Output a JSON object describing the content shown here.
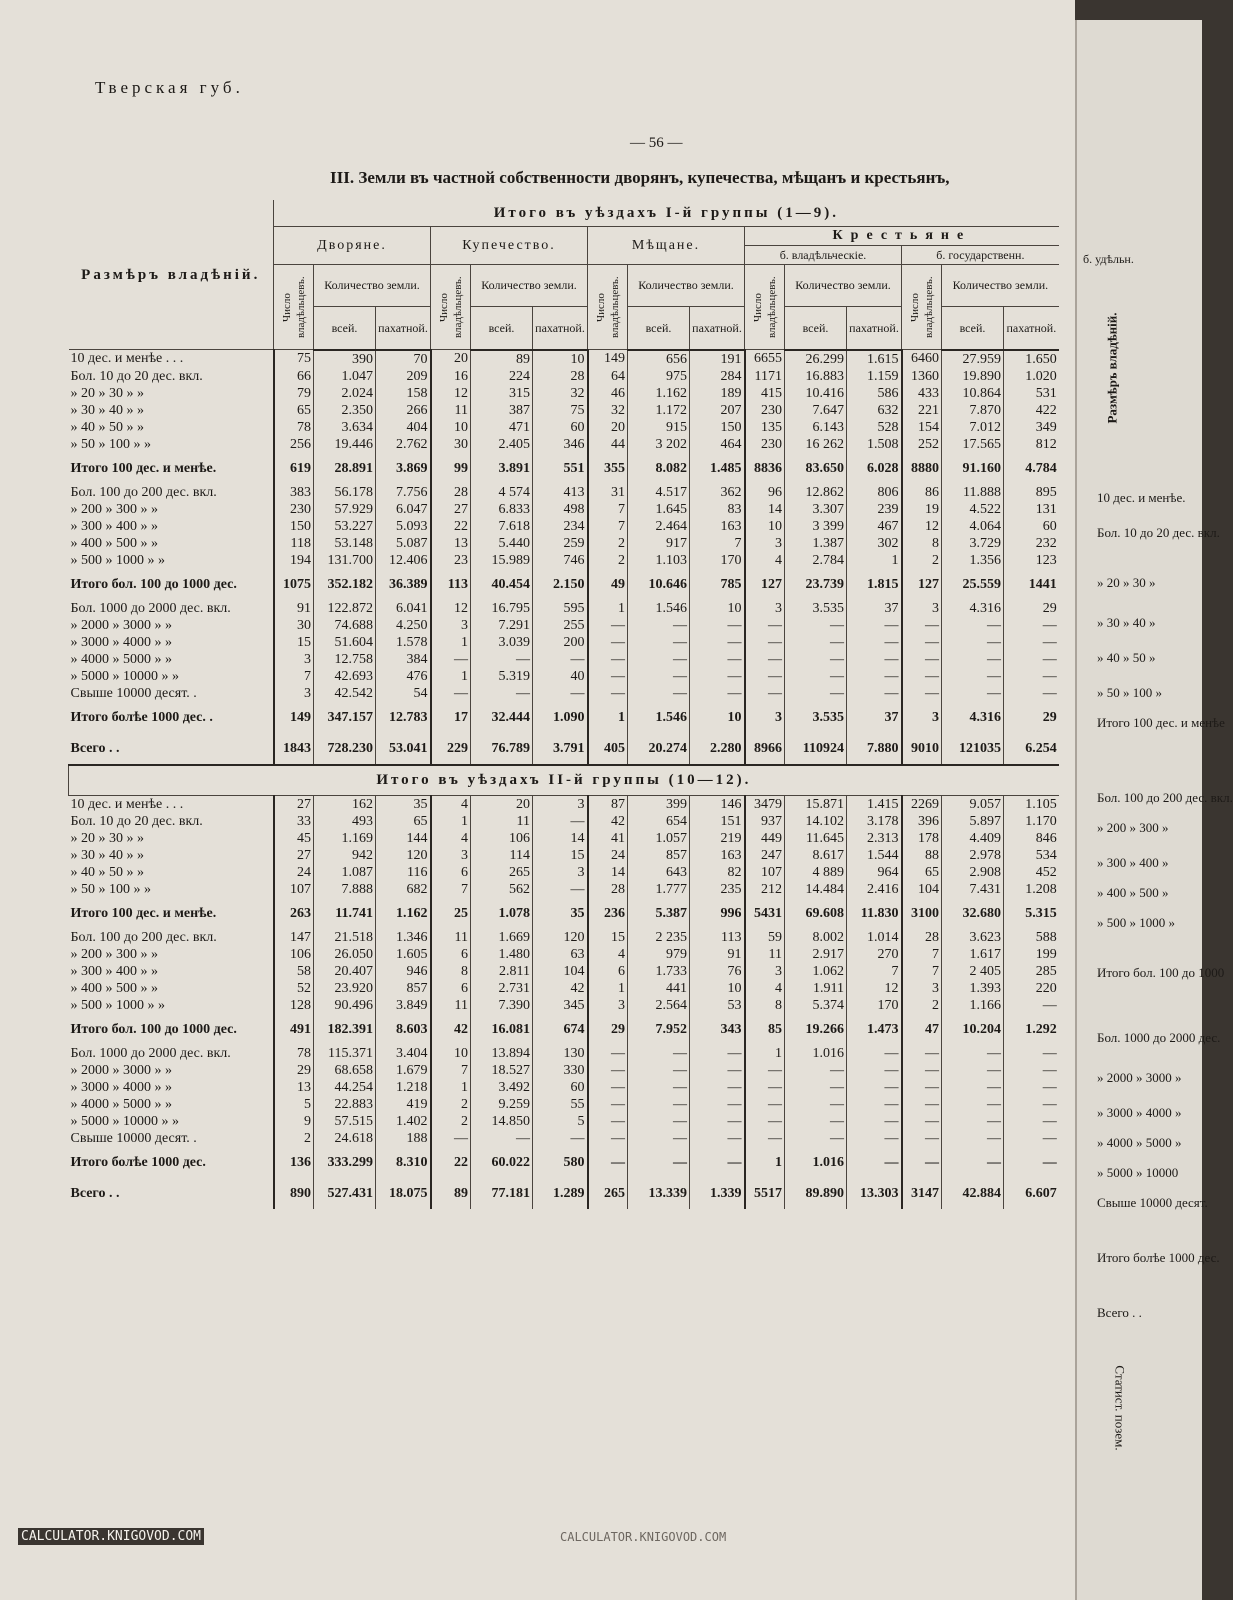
{
  "running_head": "Тверская губ.",
  "page_number": "— 56 —",
  "table_title": "III. Земли въ частной собственности дворянъ, купечества, мѣщанъ и крестьянъ,",
  "headers": {
    "size_col": "Размѣръ владѣній.",
    "group1": "Итого въ уѣздахъ I-й группы (1—9).",
    "group2": "Итого въ уѣздахъ II-й группы (10—12).",
    "nobles": "Дворяне.",
    "merchants": "Купечество.",
    "townsfolk": "Мѣщане.",
    "peasants": "Крестьяне",
    "former_private": "б. владѣльческіе.",
    "former_state": "б. государственн.",
    "former_appanage": "б. удѣльн.",
    "owners_count": "Число владѣльцевъ.",
    "land_amount": "Количество земли.",
    "total": "всей.",
    "arable": "пахатной."
  },
  "group1_rows": [
    {
      "label": "10 дес. и менѣе . . .",
      "v": [
        "75",
        "390",
        "70",
        "20",
        "89",
        "10",
        "149",
        "656",
        "191",
        "6655",
        "26.299",
        "1.615",
        "6460",
        "27.959",
        "1.650"
      ]
    },
    {
      "label": "Бол. 10 до 20 дес. вкл.",
      "v": [
        "66",
        "1.047",
        "209",
        "16",
        "224",
        "28",
        "64",
        "975",
        "284",
        "1171",
        "16.883",
        "1.159",
        "1360",
        "19.890",
        "1.020"
      ]
    },
    {
      "label": "» 20 » 30 » »",
      "v": [
        "79",
        "2.024",
        "158",
        "12",
        "315",
        "32",
        "46",
        "1.162",
        "189",
        "415",
        "10.416",
        "586",
        "433",
        "10.864",
        "531"
      ]
    },
    {
      "label": "» 30 » 40 » »",
      "v": [
        "65",
        "2.350",
        "266",
        "11",
        "387",
        "75",
        "32",
        "1.172",
        "207",
        "230",
        "7.647",
        "632",
        "221",
        "7.870",
        "422"
      ]
    },
    {
      "label": "» 40 » 50 » »",
      "v": [
        "78",
        "3.634",
        "404",
        "10",
        "471",
        "60",
        "20",
        "915",
        "150",
        "135",
        "6.143",
        "528",
        "154",
        "7.012",
        "349"
      ]
    },
    {
      "label": "» 50 » 100 » »",
      "v": [
        "256",
        "19.446",
        "2.762",
        "30",
        "2.405",
        "346",
        "44",
        "3 202",
        "464",
        "230",
        "16 262",
        "1.508",
        "252",
        "17.565",
        "812"
      ]
    },
    {
      "label": "Итого 100 дес. и менѣе.",
      "total": true,
      "v": [
        "619",
        "28.891",
        "3.869",
        "99",
        "3.891",
        "551",
        "355",
        "8.082",
        "1.485",
        "8836",
        "83.650",
        "6.028",
        "8880",
        "91.160",
        "4.784"
      ]
    },
    {
      "label": "Бол. 100 до 200 дес. вкл.",
      "v": [
        "383",
        "56.178",
        "7.756",
        "28",
        "4 574",
        "413",
        "31",
        "4.517",
        "362",
        "96",
        "12.862",
        "806",
        "86",
        "11.888",
        "895"
      ]
    },
    {
      "label": "» 200 » 300 » »",
      "v": [
        "230",
        "57.929",
        "6.047",
        "27",
        "6.833",
        "498",
        "7",
        "1.645",
        "83",
        "14",
        "3.307",
        "239",
        "19",
        "4.522",
        "131"
      ]
    },
    {
      "label": "» 300 » 400 » »",
      "v": [
        "150",
        "53.227",
        "5.093",
        "22",
        "7.618",
        "234",
        "7",
        "2.464",
        "163",
        "10",
        "3 399",
        "467",
        "12",
        "4.064",
        "60"
      ]
    },
    {
      "label": "» 400 » 500 » »",
      "v": [
        "118",
        "53.148",
        "5.087",
        "13",
        "5.440",
        "259",
        "2",
        "917",
        "7",
        "3",
        "1.387",
        "302",
        "8",
        "3.729",
        "232"
      ]
    },
    {
      "label": "» 500 » 1000 » »",
      "v": [
        "194",
        "131.700",
        "12.406",
        "23",
        "15.989",
        "746",
        "2",
        "1.103",
        "170",
        "4",
        "2.784",
        "1",
        "2",
        "1.356",
        "123"
      ]
    },
    {
      "label": "Итого бол. 100 до 1000 дес.",
      "total": true,
      "v": [
        "1075",
        "352.182",
        "36.389",
        "113",
        "40.454",
        "2.150",
        "49",
        "10.646",
        "785",
        "127",
        "23.739",
        "1.815",
        "127",
        "25.559",
        "1441"
      ]
    },
    {
      "label": "Бол. 1000 до 2000 дес. вкл.",
      "v": [
        "91",
        "122.872",
        "6.041",
        "12",
        "16.795",
        "595",
        "1",
        "1.546",
        "10",
        "3",
        "3.535",
        "37",
        "3",
        "4.316",
        "29"
      ]
    },
    {
      "label": "» 2000 » 3000 » »",
      "v": [
        "30",
        "74.688",
        "4.250",
        "3",
        "7.291",
        "255",
        "—",
        "—",
        "—",
        "—",
        "—",
        "—",
        "—",
        "—",
        "—"
      ]
    },
    {
      "label": "» 3000 » 4000 » »",
      "v": [
        "15",
        "51.604",
        "1.578",
        "1",
        "3.039",
        "200",
        "—",
        "—",
        "—",
        "—",
        "—",
        "—",
        "—",
        "—",
        "—"
      ]
    },
    {
      "label": "» 4000 » 5000 » »",
      "v": [
        "3",
        "12.758",
        "384",
        "—",
        "—",
        "—",
        "—",
        "—",
        "—",
        "—",
        "—",
        "—",
        "—",
        "—",
        "—"
      ]
    },
    {
      "label": "» 5000 » 10000 » »",
      "v": [
        "7",
        "42.693",
        "476",
        "1",
        "5.319",
        "40",
        "—",
        "—",
        "—",
        "—",
        "—",
        "—",
        "—",
        "—",
        "—"
      ]
    },
    {
      "label": "Свыше 10000 десят. .",
      "v": [
        "3",
        "42.542",
        "54",
        "—",
        "—",
        "—",
        "—",
        "—",
        "—",
        "—",
        "—",
        "—",
        "—",
        "—",
        "—"
      ]
    },
    {
      "label": "Итого болѣе 1000 дес. .",
      "total": true,
      "v": [
        "149",
        "347.157",
        "12.783",
        "17",
        "32.444",
        "1.090",
        "1",
        "1.546",
        "10",
        "3",
        "3.535",
        "37",
        "3",
        "4.316",
        "29"
      ]
    },
    {
      "label": "Всего . .",
      "total": true,
      "v": [
        "1843",
        "728.230",
        "53.041",
        "229",
        "76.789",
        "3.791",
        "405",
        "20.274",
        "2.280",
        "8966",
        "110924",
        "7.880",
        "9010",
        "121035",
        "6.254"
      ]
    }
  ],
  "group2_rows": [
    {
      "label": "10 дес. и менѣе . . .",
      "v": [
        "27",
        "162",
        "35",
        "4",
        "20",
        "3",
        "87",
        "399",
        "146",
        "3479",
        "15.871",
        "1.415",
        "2269",
        "9.057",
        "1.105"
      ]
    },
    {
      "label": "Бол. 10 до 20 дес. вкл.",
      "v": [
        "33",
        "493",
        "65",
        "1",
        "11",
        "—",
        "42",
        "654",
        "151",
        "937",
        "14.102",
        "3.178",
        "396",
        "5.897",
        "1.170"
      ]
    },
    {
      "label": "» 20 » 30 » »",
      "v": [
        "45",
        "1.169",
        "144",
        "4",
        "106",
        "14",
        "41",
        "1.057",
        "219",
        "449",
        "11.645",
        "2.313",
        "178",
        "4.409",
        "846"
      ]
    },
    {
      "label": "» 30 » 40 » »",
      "v": [
        "27",
        "942",
        "120",
        "3",
        "114",
        "15",
        "24",
        "857",
        "163",
        "247",
        "8.617",
        "1.544",
        "88",
        "2.978",
        "534"
      ]
    },
    {
      "label": "» 40 » 50 » »",
      "v": [
        "24",
        "1.087",
        "116",
        "6",
        "265",
        "3",
        "14",
        "643",
        "82",
        "107",
        "4 889",
        "964",
        "65",
        "2.908",
        "452"
      ]
    },
    {
      "label": "» 50 » 100 » »",
      "v": [
        "107",
        "7.888",
        "682",
        "7",
        "562",
        "—",
        "28",
        "1.777",
        "235",
        "212",
        "14.484",
        "2.416",
        "104",
        "7.431",
        "1.208"
      ]
    },
    {
      "label": "Итого 100 дес. и менѣе.",
      "total": true,
      "v": [
        "263",
        "11.741",
        "1.162",
        "25",
        "1.078",
        "35",
        "236",
        "5.387",
        "996",
        "5431",
        "69.608",
        "11.830",
        "3100",
        "32.680",
        "5.315"
      ]
    },
    {
      "label": "Бол. 100 до 200 дес. вкл.",
      "v": [
        "147",
        "21.518",
        "1.346",
        "11",
        "1.669",
        "120",
        "15",
        "2 235",
        "113",
        "59",
        "8.002",
        "1.014",
        "28",
        "3.623",
        "588"
      ]
    },
    {
      "label": "» 200 » 300 » »",
      "v": [
        "106",
        "26.050",
        "1.605",
        "6",
        "1.480",
        "63",
        "4",
        "979",
        "91",
        "11",
        "2.917",
        "270",
        "7",
        "1.617",
        "199"
      ]
    },
    {
      "label": "» 300 » 400 » »",
      "v": [
        "58",
        "20.407",
        "946",
        "8",
        "2.811",
        "104",
        "6",
        "1.733",
        "76",
        "3",
        "1.062",
        "7",
        "7",
        "2 405",
        "285"
      ]
    },
    {
      "label": "» 400 » 500 » »",
      "v": [
        "52",
        "23.920",
        "857",
        "6",
        "2.731",
        "42",
        "1",
        "441",
        "10",
        "4",
        "1.911",
        "12",
        "3",
        "1.393",
        "220"
      ]
    },
    {
      "label": "» 500 » 1000 » »",
      "v": [
        "128",
        "90.496",
        "3.849",
        "11",
        "7.390",
        "345",
        "3",
        "2.564",
        "53",
        "8",
        "5.374",
        "170",
        "2",
        "1.166",
        "—"
      ]
    },
    {
      "label": "Итого бол. 100 до 1000 дес.",
      "total": true,
      "v": [
        "491",
        "182.391",
        "8.603",
        "42",
        "16.081",
        "674",
        "29",
        "7.952",
        "343",
        "85",
        "19.266",
        "1.473",
        "47",
        "10.204",
        "1.292"
      ]
    },
    {
      "label": "Бол. 1000 до 2000 дес. вкл.",
      "v": [
        "78",
        "115.371",
        "3.404",
        "10",
        "13.894",
        "130",
        "—",
        "—",
        "—",
        "1",
        "1.016",
        "—",
        "—",
        "—",
        "—"
      ]
    },
    {
      "label": "» 2000 » 3000 » »",
      "v": [
        "29",
        "68.658",
        "1.679",
        "7",
        "18.527",
        "330",
        "—",
        "—",
        "—",
        "—",
        "—",
        "—",
        "—",
        "—",
        "—"
      ]
    },
    {
      "label": "» 3000 » 4000 » »",
      "v": [
        "13",
        "44.254",
        "1.218",
        "1",
        "3.492",
        "60",
        "—",
        "—",
        "—",
        "—",
        "—",
        "—",
        "—",
        "—",
        "—"
      ]
    },
    {
      "label": "» 4000 » 5000 » »",
      "v": [
        "5",
        "22.883",
        "419",
        "2",
        "9.259",
        "55",
        "—",
        "—",
        "—",
        "—",
        "—",
        "—",
        "—",
        "—",
        "—"
      ]
    },
    {
      "label": "» 5000 » 10000 » »",
      "v": [
        "9",
        "57.515",
        "1.402",
        "2",
        "14.850",
        "5",
        "—",
        "—",
        "—",
        "—",
        "—",
        "—",
        "—",
        "—",
        "—"
      ]
    },
    {
      "label": "Свыше 10000 десят. .",
      "v": [
        "2",
        "24.618",
        "188",
        "—",
        "—",
        "—",
        "—",
        "—",
        "—",
        "—",
        "—",
        "—",
        "—",
        "—",
        "—"
      ]
    },
    {
      "label": "Итого болѣе 1000 дес.",
      "total": true,
      "v": [
        "136",
        "333.299",
        "8.310",
        "22",
        "60.022",
        "580",
        "—",
        "—",
        "—",
        "1",
        "1.016",
        "—",
        "—",
        "—",
        "—"
      ]
    },
    {
      "label": "Всего . .",
      "total": true,
      "v": [
        "890",
        "527.431",
        "18.075",
        "89",
        "77.181",
        "1.289",
        "265",
        "13.339",
        "1.339",
        "5517",
        "89.890",
        "13.303",
        "3147",
        "42.884",
        "6.607"
      ]
    }
  ],
  "right_page": {
    "labels": [
      "Размѣръ владѣній.",
      "10 дес. и менѣе.",
      "Бол. 10 до 20 дес. вкл.",
      "» 20 » 30 »",
      "» 30 » 40 »",
      "» 40 » 50 »",
      "» 50 » 100 »",
      "Итого 100 дес. и менѣе",
      "Бол. 100 до 200 дес. вкл.",
      "» 200 » 300 »",
      "» 300 » 400 »",
      "» 400 » 500 »",
      "» 500 » 1000 »",
      "Итого бол. 100 до 1000",
      "Бол. 1000 до 2000 дес.",
      "» 2000 » 3000 »",
      "» 3000 » 4000 »",
      "» 4000 » 5000 »",
      "» 5000 » 10000",
      "Свыше 10000 десят.",
      "Итого болѣе 1000 дес.",
      "Всего . .",
      "Статист. позем."
    ]
  },
  "watermark": "CALCULATOR.KNIGOVOD.COM"
}
